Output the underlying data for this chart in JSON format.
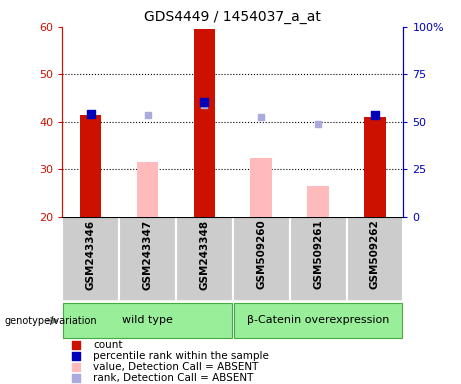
{
  "title": "GDS4449 / 1454037_a_at",
  "samples": [
    "GSM243346",
    "GSM243347",
    "GSM243348",
    "GSM509260",
    "GSM509261",
    "GSM509262"
  ],
  "groups": [
    {
      "label": "wild type",
      "start": 0,
      "end": 2
    },
    {
      "label": "β-Catenin overexpression",
      "start": 3,
      "end": 5
    }
  ],
  "ylim_left": [
    20,
    60
  ],
  "ylim_right": [
    0,
    100
  ],
  "yticks_left": [
    20,
    30,
    40,
    50,
    60
  ],
  "yticks_right": [
    0,
    25,
    50,
    75,
    100
  ],
  "ytick_labels_right": [
    "0",
    "25",
    "50",
    "75",
    "100%"
  ],
  "red_bar_samples": [
    0,
    2,
    5
  ],
  "red_bar_tops": [
    41.5,
    59.5,
    41.0
  ],
  "pink_bar_samples": [
    1,
    3,
    4
  ],
  "pink_bar_tops": [
    31.5,
    32.5,
    26.5
  ],
  "bar_bottom": 20,
  "red_color": "#cc1100",
  "pink_color": "#ffbbbb",
  "blue_sq_samples": [
    0,
    2,
    5
  ],
  "blue_sq_values": [
    41.7,
    44.2,
    41.5
  ],
  "blue_color": "#0000bb",
  "lblue_sq_samples": [
    1,
    2,
    3,
    4
  ],
  "lblue_sq_values": [
    41.5,
    43.5,
    41.0,
    39.5
  ],
  "lblue_color": "#aaaadd",
  "dotted_lines": [
    30,
    40,
    50
  ],
  "bar_width": 0.38,
  "label_bg": "#cccccc",
  "group_bg": "#99ee99",
  "genotype_label": "genotype/variation",
  "legend": [
    {
      "color": "#cc1100",
      "label": "count"
    },
    {
      "color": "#0000bb",
      "label": "percentile rank within the sample"
    },
    {
      "color": "#ffbbbb",
      "label": "value, Detection Call = ABSENT"
    },
    {
      "color": "#aaaadd",
      "label": "rank, Detection Call = ABSENT"
    }
  ]
}
